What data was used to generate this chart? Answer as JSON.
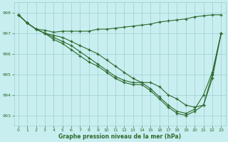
{
  "xlabel": "Graphe pression niveau de la mer (hPa)",
  "bg_color": "#c8eef0",
  "grid_color": "#9dcfcf",
  "line_color": "#2d6a2d",
  "ylim": [
    992.5,
    998.5
  ],
  "xlim": [
    -0.5,
    23.5
  ],
  "yticks": [
    993,
    994,
    995,
    996,
    997,
    998
  ],
  "xticks": [
    0,
    1,
    2,
    3,
    4,
    5,
    6,
    7,
    8,
    9,
    10,
    11,
    12,
    13,
    14,
    15,
    16,
    17,
    18,
    19,
    20,
    21,
    22,
    23
  ],
  "line_top": [
    997.9,
    997.5,
    997.2,
    997.15,
    997.05,
    997.1,
    997.1,
    997.1,
    997.1,
    997.2,
    997.2,
    997.25,
    997.3,
    997.35,
    997.4,
    997.45,
    997.55,
    997.6,
    997.65,
    997.7,
    997.8,
    997.85,
    997.9,
    997.9
  ],
  "line2": [
    997.9,
    997.5,
    997.2,
    997.0,
    996.9,
    996.8,
    996.6,
    996.4,
    996.2,
    996.0,
    995.7,
    995.4,
    995.1,
    994.8,
    994.6,
    994.6,
    994.4,
    994.0,
    993.8,
    993.5,
    993.4,
    993.5,
    995.0,
    997.0
  ],
  "line3": [
    997.9,
    997.5,
    997.2,
    997.0,
    996.8,
    996.6,
    996.4,
    996.1,
    995.8,
    995.5,
    995.2,
    994.9,
    994.7,
    994.6,
    994.6,
    994.3,
    993.9,
    993.5,
    993.2,
    993.1,
    993.3,
    994.0,
    995.1,
    997.0
  ],
  "line4": [
    997.9,
    997.5,
    997.2,
    997.0,
    996.7,
    996.5,
    996.2,
    995.9,
    995.6,
    995.4,
    995.1,
    994.8,
    994.6,
    994.5,
    994.5,
    994.2,
    993.8,
    993.4,
    993.1,
    993.0,
    993.2,
    993.5,
    994.8,
    997.0
  ]
}
